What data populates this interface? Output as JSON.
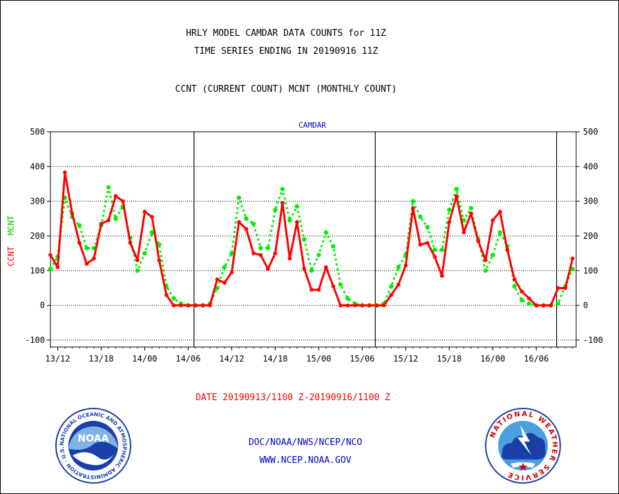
{
  "header": {
    "title_line1": "HRLY MODEL CAMDAR DATA COUNTS for 11Z",
    "title_line2": "TIME SERIES ENDING IN 20190916 11Z",
    "subtitle": "CCNT (CURRENT COUNT) MCNT (MONTHLY COUNT)"
  },
  "footer": {
    "date_range": "DATE 20190913/1100 Z-20190916/1100 Z",
    "agency": "DOC/NOAA/NWS/NCEP/NCO",
    "website": "WWW.NCEP.NOAA.GOV"
  },
  "logos": {
    "noaa_text": "NOAA",
    "noaa_ring_text": "NATIONAL OCEANIC AND ATMOSPHERIC ADMINISTRATION · U.S. DEPARTMENT OF COMMERCE ·",
    "nws_ring_text": "NATIONAL WEATHER SERVICE"
  },
  "colors": {
    "ccnt": "#ff0000",
    "mcnt": "#00ee00",
    "text_blue": "#0000cc",
    "text_red": "#ff0000",
    "axis": "#000000",
    "noaa_blue": "#1b3fa8",
    "noaa_light": "#7fb3e6"
  },
  "chart_data": {
    "type": "line",
    "title": "CAMDAR",
    "ylabel_left_ccnt": "CCNT",
    "ylabel_left_mcnt": "MCNT",
    "ylim": [
      -120,
      500
    ],
    "yticks": [
      -100,
      0,
      100,
      200,
      300,
      400,
      500
    ],
    "ytick_labels": [
      "-100",
      "0",
      "100",
      "200",
      "300",
      "400",
      "500"
    ],
    "xlim_hours": [
      0,
      72.5
    ],
    "x_ticks": [
      {
        "label": "13/12",
        "hour": 1
      },
      {
        "label": "13/18",
        "hour": 7
      },
      {
        "label": "14/00",
        "hour": 13
      },
      {
        "label": "14/06",
        "hour": 19
      },
      {
        "label": "14/12",
        "hour": 25
      },
      {
        "label": "14/18",
        "hour": 31
      },
      {
        "label": "15/00",
        "hour": 37
      },
      {
        "label": "15/06",
        "hour": 43
      },
      {
        "label": "15/12",
        "hour": 49
      },
      {
        "label": "15/18",
        "hour": 55
      },
      {
        "label": "16/00",
        "hour": 61
      },
      {
        "label": "16/06",
        "hour": 67
      }
    ],
    "day_boundaries_hour": [
      19.8,
      44.8,
      69.8
    ],
    "grid": true,
    "series": [
      {
        "name": "CCNT",
        "style": "solid",
        "values": [
          145,
          110,
          383,
          265,
          180,
          120,
          135,
          235,
          245,
          315,
          300,
          180,
          130,
          270,
          255,
          130,
          30,
          0,
          0,
          0,
          0,
          0,
          0,
          75,
          65,
          95,
          240,
          220,
          150,
          145,
          105,
          150,
          295,
          135,
          240,
          105,
          45,
          45,
          110,
          55,
          0,
          0,
          0,
          0,
          0,
          0,
          0,
          30,
          60,
          115,
          280,
          175,
          180,
          140,
          85,
          240,
          315,
          210,
          265,
          185,
          130,
          245,
          270,
          160,
          75,
          40,
          20,
          0,
          0,
          0,
          50,
          50,
          135
        ]
      },
      {
        "name": "MCNT",
        "style": "dotted",
        "values": [
          105,
          140,
          310,
          255,
          230,
          165,
          165,
          230,
          340,
          250,
          285,
          195,
          100,
          150,
          210,
          175,
          55,
          20,
          5,
          0,
          0,
          0,
          5,
          50,
          110,
          150,
          310,
          250,
          235,
          165,
          165,
          275,
          335,
          245,
          285,
          190,
          100,
          145,
          210,
          170,
          60,
          20,
          5,
          0,
          0,
          0,
          5,
          55,
          110,
          145,
          300,
          255,
          225,
          160,
          160,
          275,
          335,
          245,
          280,
          190,
          100,
          145,
          210,
          170,
          55,
          15,
          5,
          0,
          0,
          0,
          5,
          55,
          105
        ]
      }
    ]
  }
}
